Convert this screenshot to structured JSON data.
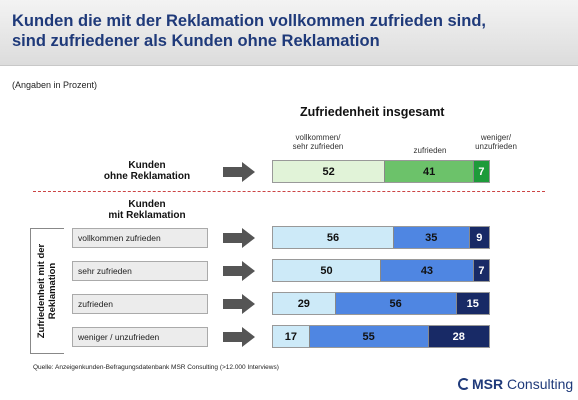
{
  "header": {
    "title_line1": "Kunden die mit der Reklamation vollkommen zufrieden sind,",
    "title_line2": "sind zufriedener als Kunden ohne Reklamation"
  },
  "subtitle": "(Angaben in Prozent)",
  "source": "Quelle: Anzeigenkunden-Befragungsdatenbank MSR Consulting (>12.000 Interviews)",
  "logo": {
    "brand": "MSR",
    "rest": " Consulting"
  },
  "colors": {
    "light_green": "#e1f3d8",
    "mid_green": "#6cc26a",
    "dark_green": "#1e9b3a",
    "light_blue": "#cdeaf8",
    "mid_blue": "#4f86e2",
    "dark_blue": "#182a66",
    "arrow": "#555555"
  },
  "chart_data": {
    "type": "bar",
    "orientation": "horizontal-stacked-100",
    "title": "Zufriedenheit insgesamt",
    "column_headers": {
      "vollkommen": [
        "vollkommen/",
        "sehr zufrieden"
      ],
      "zufrieden": [
        "zufrieden"
      ],
      "weniger": [
        "weniger/",
        "unzufrieden"
      ]
    },
    "group_without": {
      "label_line1": "Kunden",
      "label_line2": "ohne Reklamation"
    },
    "group_with": {
      "label_line1": "Kunden",
      "label_line2": "mit Reklamation",
      "axis_label_line1": "Zufriedenheit mit der",
      "axis_label_line2": "Reklamation"
    },
    "rows": [
      {
        "label": "",
        "values": [
          52,
          41,
          7
        ]
      },
      {
        "label": "vollkommen zufrieden",
        "values": [
          56,
          35,
          9
        ]
      },
      {
        "label": "sehr zufrieden",
        "values": [
          50,
          43,
          7
        ]
      },
      {
        "label": "zufrieden",
        "values": [
          29,
          56,
          15
        ]
      },
      {
        "label": "weniger / unzufrieden",
        "values": [
          17,
          55,
          28
        ]
      }
    ]
  }
}
